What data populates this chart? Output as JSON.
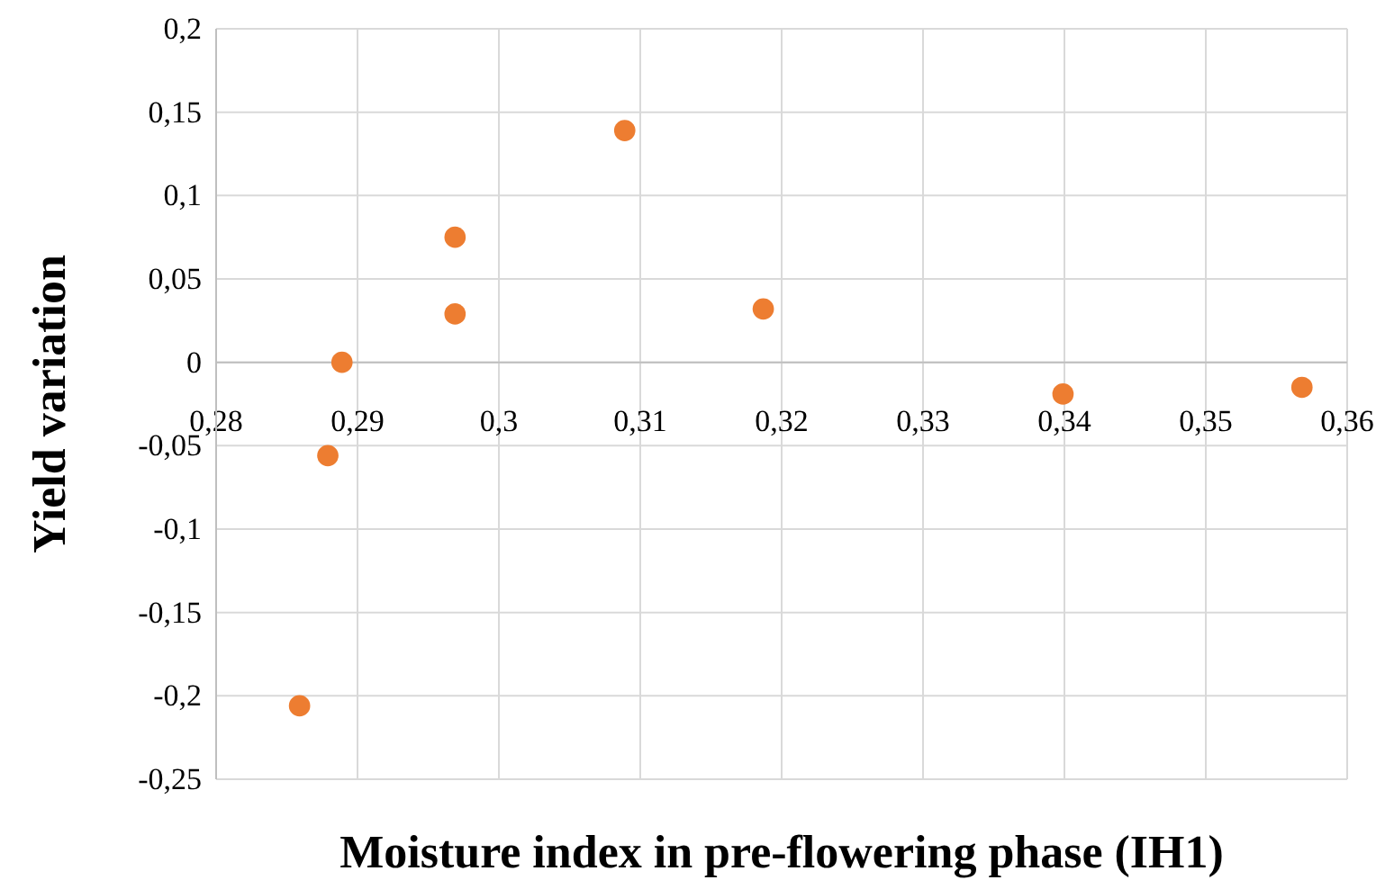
{
  "chart_data": {
    "type": "scatter",
    "xlabel": "Moisture index in pre-flowering phase (IH1)",
    "ylabel": "Yield variation",
    "x": [
      0.2859,
      0.2879,
      0.2889,
      0.2969,
      0.2969,
      0.3089,
      0.3187,
      0.3399,
      0.3568
    ],
    "series": [
      {
        "color": "#ed7d31",
        "values": [
          -0.206,
          -0.056,
          0.0,
          0.075,
          0.029,
          0.139,
          0.032,
          -0.019,
          -0.015
        ]
      }
    ],
    "xlim": [
      0.28,
      0.36
    ],
    "ylim": [
      -0.25,
      0.2
    ],
    "xticks": [
      {
        "value": 0.28,
        "label": "0,28"
      },
      {
        "value": 0.29,
        "label": "0,29"
      },
      {
        "value": 0.3,
        "label": "0,3"
      },
      {
        "value": 0.31,
        "label": "0,31"
      },
      {
        "value": 0.32,
        "label": "0,32"
      },
      {
        "value": 0.33,
        "label": "0,33"
      },
      {
        "value": 0.34,
        "label": "0,34"
      },
      {
        "value": 0.35,
        "label": "0,35"
      },
      {
        "value": 0.36,
        "label": "0,36"
      }
    ],
    "yticks": [
      {
        "value": -0.25,
        "label": "-0,25"
      },
      {
        "value": -0.2,
        "label": "-0,2"
      },
      {
        "value": -0.15,
        "label": "-0,15"
      },
      {
        "value": -0.1,
        "label": "-0,1"
      },
      {
        "value": -0.05,
        "label": "-0,05"
      },
      0,
      {
        "value": 0.05,
        "label": "0,05"
      },
      {
        "value": 0.1,
        "label": "0,1"
      },
      {
        "value": 0.15,
        "label": "0,15"
      },
      {
        "value": 0.2,
        "label": "0,2"
      }
    ],
    "grid": true,
    "marker": "circle"
  }
}
